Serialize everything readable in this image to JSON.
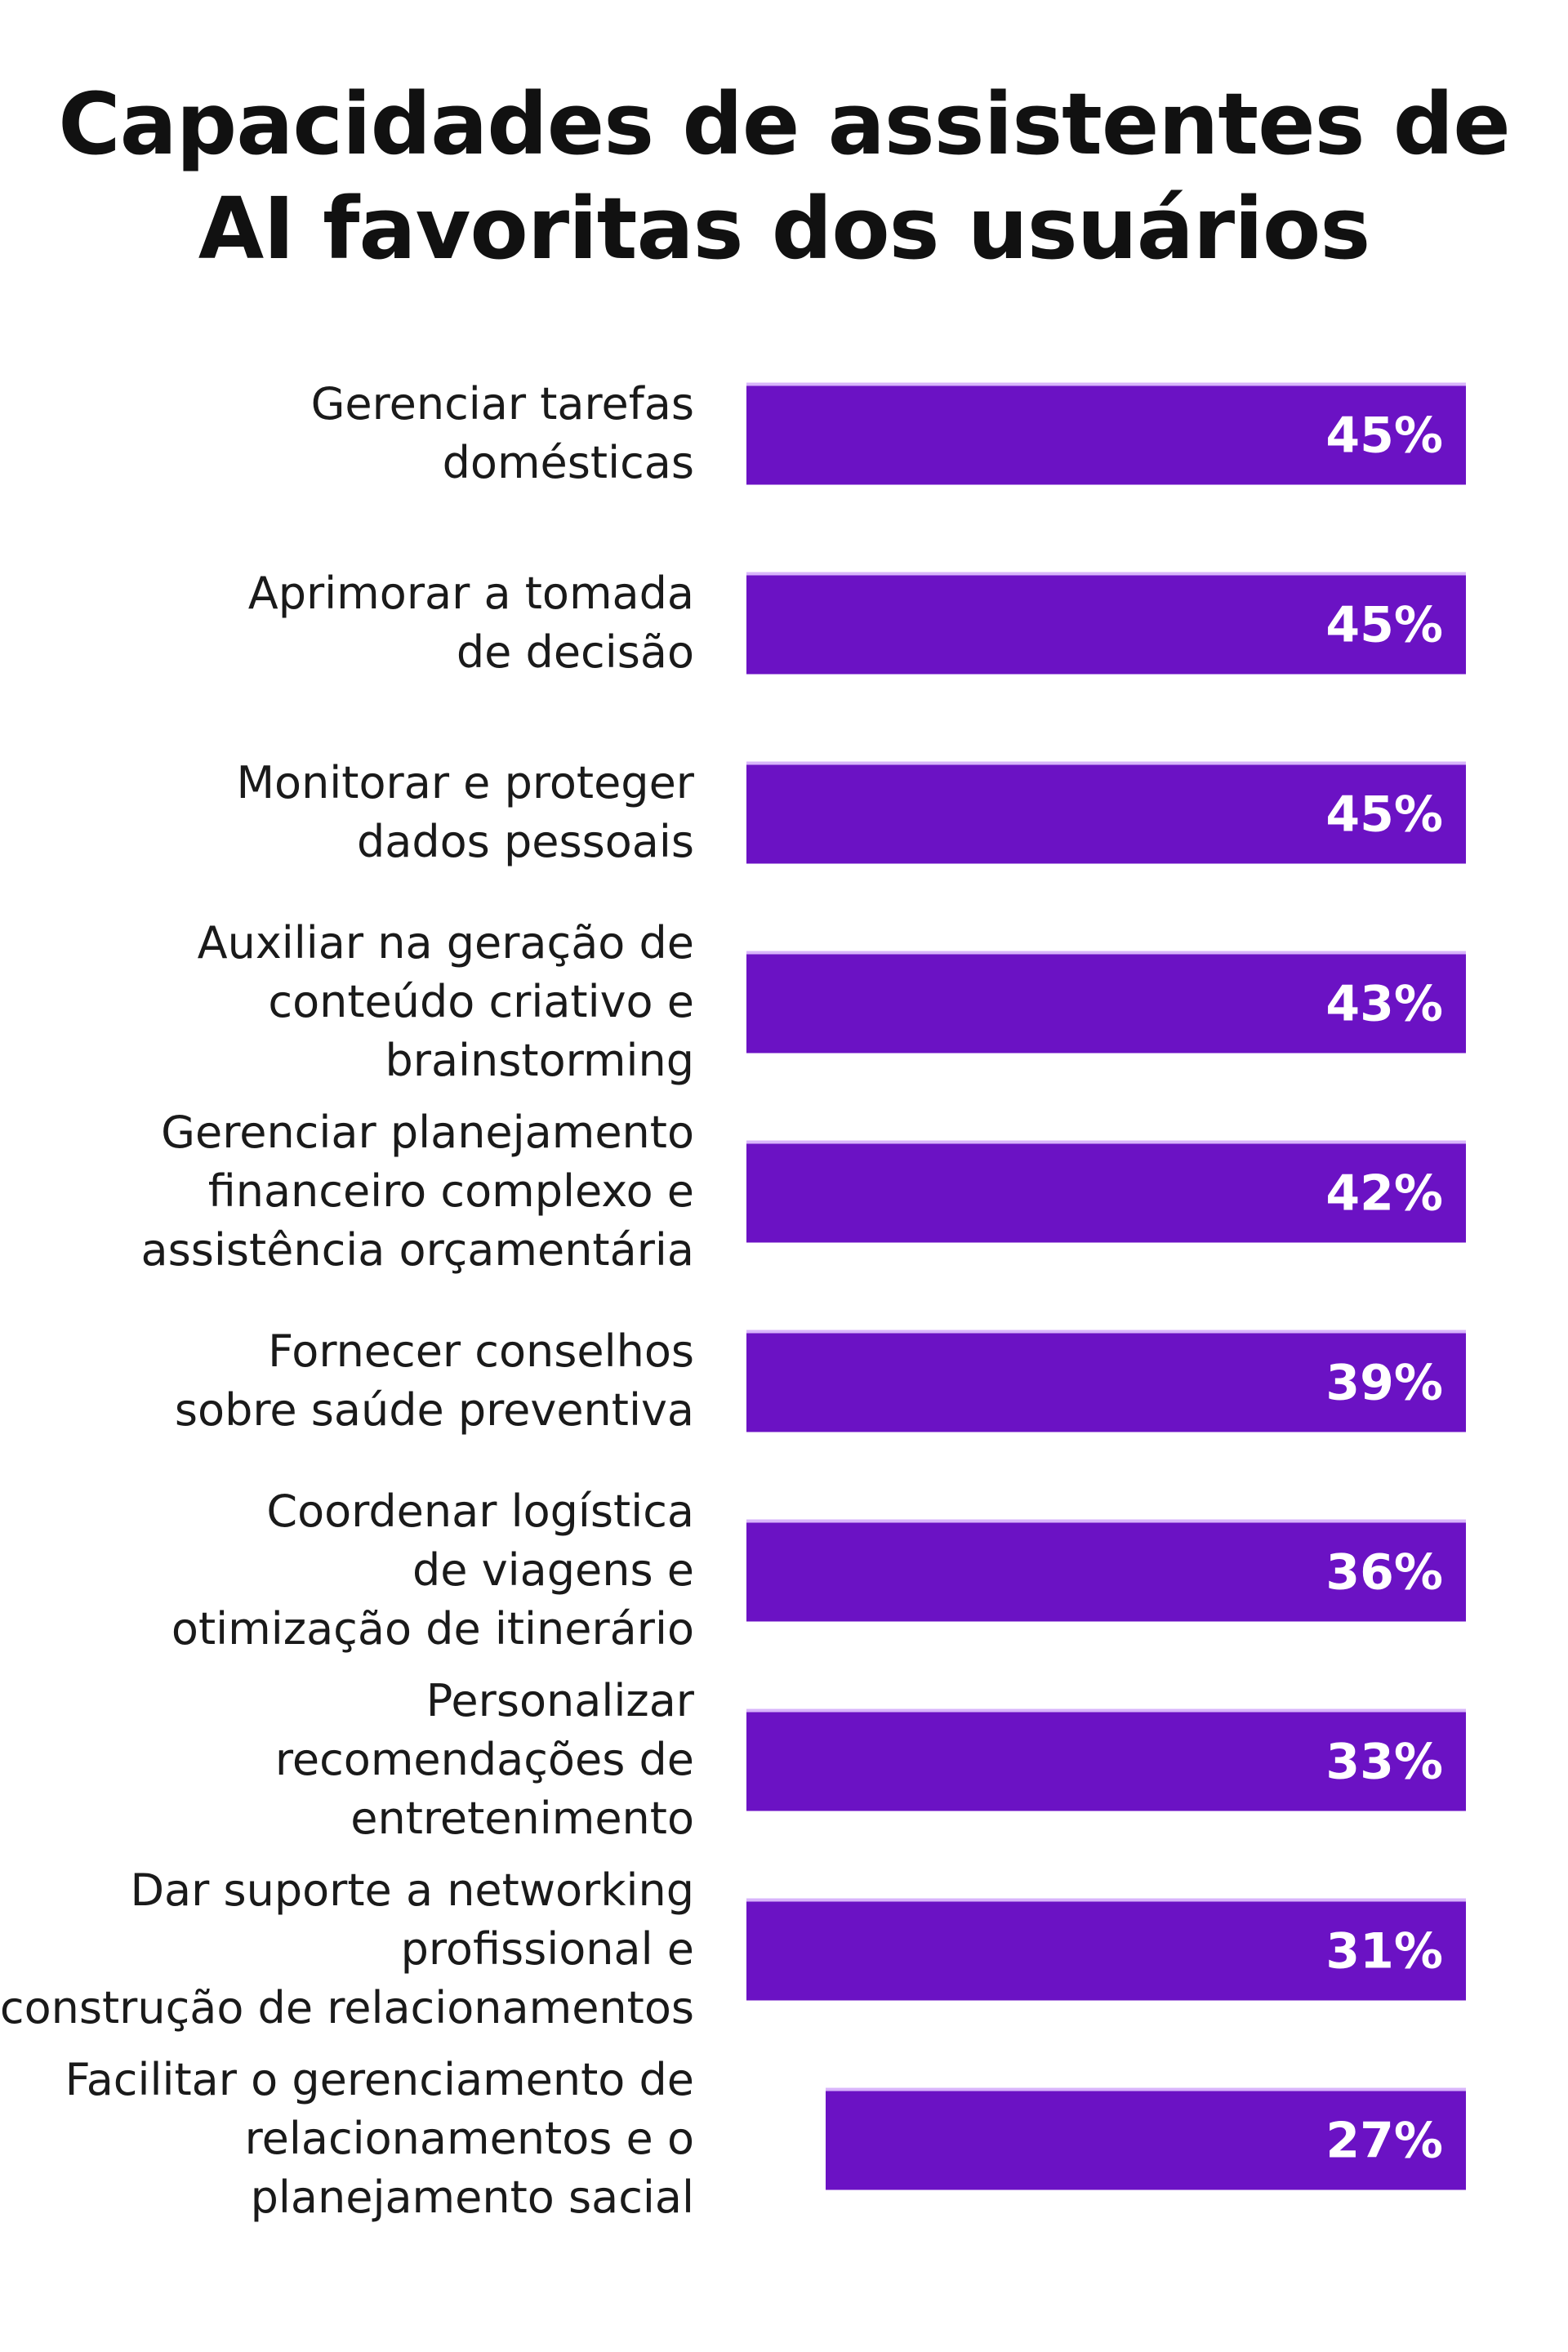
{
  "chart_data": {
    "type": "bar",
    "orientation": "horizontal",
    "title": [
      "Capacidades de assistentes de",
      "AI favoritas dos usuários"
    ],
    "categories": [
      [
        "Gerenciar tarefas",
        "domésticas"
      ],
      [
        "Aprimorar a tomada",
        "de decisão"
      ],
      [
        "Monitorar e proteger",
        "dados pessoais"
      ],
      [
        "Auxiliar na geração de",
        "conteúdo criativo e",
        "brainstorming"
      ],
      [
        "Gerenciar planejamento",
        "financeiro complexo e",
        "assistência orçamentária"
      ],
      [
        "Fornecer conselhos",
        "sobre saúde preventiva"
      ],
      [
        "Coordenar logística",
        "de viagens e",
        "otimização de itinerário"
      ],
      [
        "Personalizar",
        "recomendações de",
        "entretenimento"
      ],
      [
        "Dar suporte a networking",
        "profissional e",
        "construção de relacionamentos"
      ],
      [
        "Facilitar o gerenciamento de",
        "relacionamentos e o",
        "planejamento sacial"
      ]
    ],
    "values": [
      45,
      45,
      45,
      43,
      42,
      39,
      36,
      33,
      31,
      27
    ],
    "value_labels": [
      "45%",
      "45%",
      "45%",
      "43%",
      "42%",
      "39%",
      "36%",
      "33%",
      "31%",
      "27%"
    ],
    "unit": "%",
    "bar_color": "#6b12c4",
    "grid": false,
    "legend": "none"
  }
}
